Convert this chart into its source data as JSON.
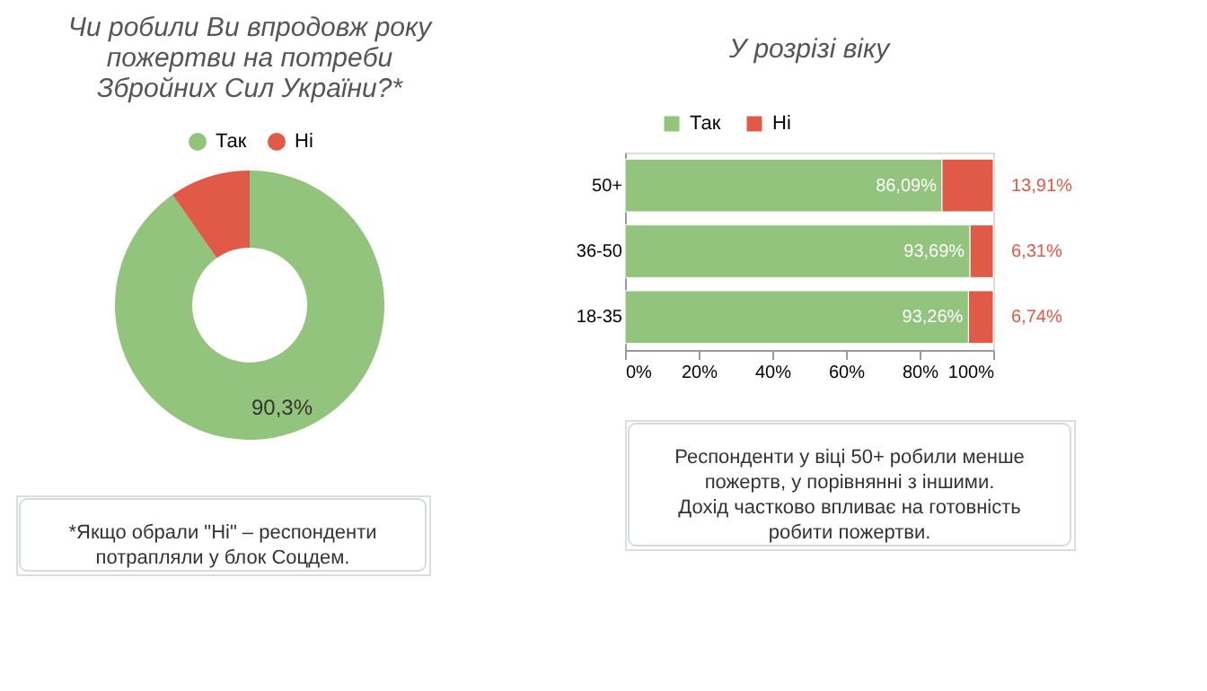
{
  "chart_data": [
    {
      "type": "donut",
      "title": "Чи робили Ви впродовж року\nпожертви на потреби\nЗбройних Сил України?*",
      "categories": [
        "Так",
        "Ні"
      ],
      "values": [
        90.3,
        9.7
      ],
      "colors": [
        "#93c47d",
        "#e05a47"
      ],
      "value_labels": [
        "90,3%",
        null
      ],
      "legend": "top",
      "annotations": [
        "*Якщо обрали \"Ні\" – респонденти\nпотрапляли у блок Соцдем."
      ]
    },
    {
      "type": "bar",
      "orientation": "horizontal",
      "stacked": true,
      "title": "У розрізі віку",
      "categories": [
        "50+",
        "36-50",
        "18-35"
      ],
      "series": [
        {
          "name": "Так",
          "color": "#93c47d",
          "values": [
            86.09,
            93.69,
            93.26
          ],
          "value_labels": [
            "86,09%",
            "93,69%",
            "93,26%"
          ]
        },
        {
          "name": "Ні",
          "color": "#e05a47",
          "values": [
            13.91,
            6.31,
            6.74
          ],
          "value_labels": [
            "13,91%",
            "6,31%",
            "6,74%"
          ]
        }
      ],
      "xlim": [
        0,
        100
      ],
      "xticks": [
        {
          "value": 0,
          "label": "0%"
        },
        {
          "value": 20,
          "label": "20%"
        },
        {
          "value": 40,
          "label": "40%"
        },
        {
          "value": 60,
          "label": "60%"
        },
        {
          "value": 80,
          "label": "80%"
        },
        {
          "value": 100,
          "label": "100%"
        }
      ],
      "grid": false,
      "legend": "top",
      "annotations": [
        "Респонденти у віці 50+ робили менше\nпожертв, у порівнянні з іншими.\nДохід частково впливає на готовність\nробити пожертви."
      ]
    }
  ]
}
